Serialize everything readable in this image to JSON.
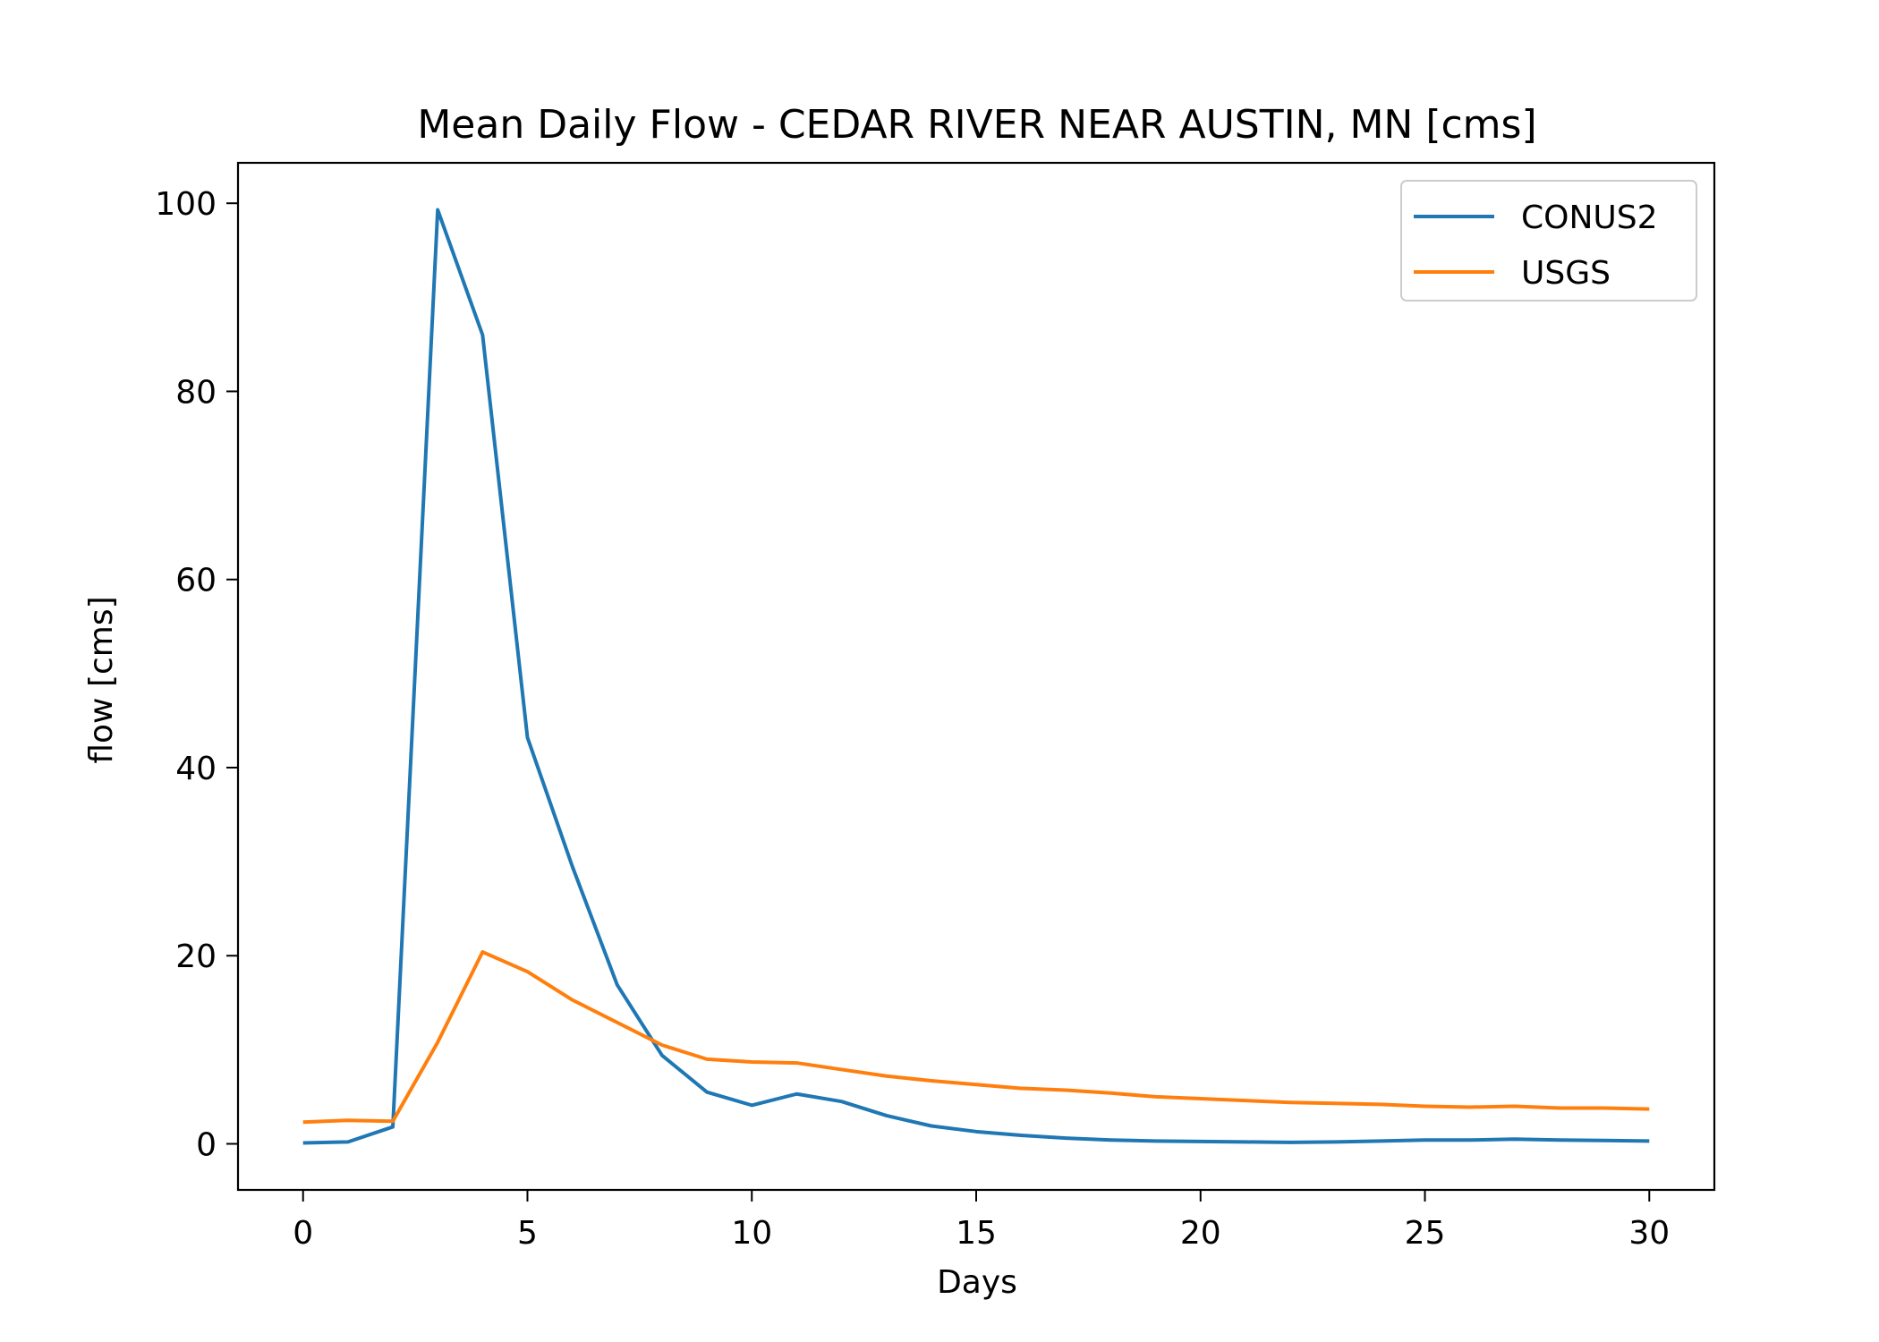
{
  "chart_data": {
    "type": "line",
    "title": "Mean Daily Flow - CEDAR RIVER NEAR AUSTIN, MN [cms]",
    "xlabel": "Days",
    "ylabel": "flow [cms]",
    "xlim": [
      -1.45,
      31.45
    ],
    "ylim": [
      -4.9,
      104.3
    ],
    "xticks": [
      0,
      5,
      10,
      15,
      20,
      25,
      30
    ],
    "yticks": [
      0,
      20,
      40,
      60,
      80,
      100
    ],
    "grid": false,
    "legend_position": "top-right",
    "x": [
      0,
      1,
      2,
      3,
      4,
      5,
      6,
      7,
      8,
      9,
      10,
      11,
      12,
      13,
      14,
      15,
      16,
      17,
      18,
      19,
      20,
      21,
      22,
      23,
      24,
      25,
      26,
      27,
      28,
      29,
      30
    ],
    "series": [
      {
        "name": "CONUS2",
        "color": "#1f77b4",
        "values": [
          0.1,
          0.2,
          1.8,
          99.3,
          86.0,
          43.2,
          29.5,
          16.9,
          9.4,
          5.5,
          4.1,
          5.3,
          4.5,
          3.0,
          1.9,
          1.3,
          0.9,
          0.6,
          0.4,
          0.3,
          0.25,
          0.2,
          0.15,
          0.2,
          0.3,
          0.4,
          0.4,
          0.5,
          0.4,
          0.35,
          0.3
        ]
      },
      {
        "name": "USGS",
        "color": "#ff7f0e",
        "values": [
          2.3,
          2.5,
          2.4,
          10.8,
          20.4,
          18.3,
          15.3,
          12.9,
          10.5,
          9.0,
          8.7,
          8.6,
          7.9,
          7.2,
          6.7,
          6.3,
          5.9,
          5.7,
          5.4,
          5.0,
          4.8,
          4.6,
          4.4,
          4.3,
          4.2,
          4.0,
          3.9,
          4.0,
          3.8,
          3.8,
          3.7
        ]
      }
    ]
  }
}
